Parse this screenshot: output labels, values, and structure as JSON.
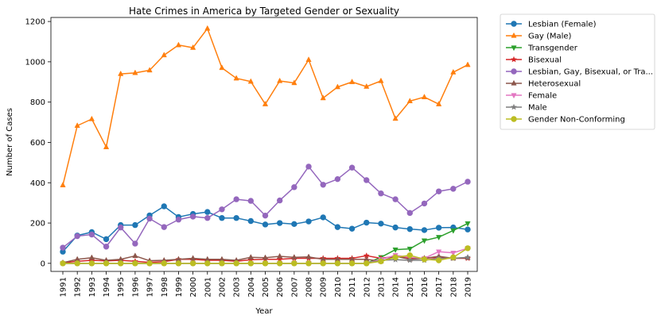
{
  "chart_data": {
    "type": "line",
    "title": "Hate Crimes in America by Targeted Gender or Sexuality",
    "xlabel": "Year",
    "ylabel": "Number of Cases",
    "ylim": [
      -40,
      1220
    ],
    "yticks": [
      0,
      200,
      400,
      600,
      800,
      1000,
      1200
    ],
    "grid": false,
    "legend_placement": "outside-top-right",
    "x": [
      "1991",
      "1992",
      "1993",
      "1994",
      "1995",
      "1996",
      "1997",
      "1998",
      "1999",
      "2000",
      "2001",
      "2002",
      "2003",
      "2004",
      "2005",
      "2006",
      "2007",
      "2008",
      "2009",
      "2010",
      "2011",
      "2012",
      "2013",
      "2014",
      "2015",
      "2016",
      "2017",
      "2018",
      "2019"
    ],
    "series": [
      {
        "name": "Lesbian (Female)",
        "color": "#1f77b4",
        "marker": "circle",
        "values": [
          58,
          138,
          155,
          120,
          190,
          190,
          238,
          283,
          230,
          245,
          255,
          225,
          225,
          210,
          193,
          200,
          195,
          208,
          228,
          180,
          172,
          202,
          197,
          178,
          170,
          165,
          177,
          178,
          168
        ]
      },
      {
        "name": "Gay (Male)",
        "color": "#ff7f0e",
        "marker": "triangle-up",
        "values": [
          388,
          683,
          716,
          577,
          940,
          945,
          958,
          1033,
          1083,
          1070,
          1165,
          970,
          918,
          902,
          790,
          905,
          895,
          1010,
          820,
          875,
          900,
          877,
          905,
          718,
          805,
          825,
          790,
          948,
          985
        ]
      },
      {
        "name": "Transgender",
        "color": "#2ca02c",
        "marker": "triangle-down",
        "values": [
          0,
          0,
          0,
          0,
          0,
          0,
          0,
          0,
          0,
          0,
          0,
          0,
          0,
          0,
          0,
          0,
          0,
          0,
          0,
          0,
          0,
          0,
          30,
          68,
          72,
          113,
          130,
          163,
          198
        ]
      },
      {
        "name": "Bisexual",
        "color": "#d62728",
        "marker": "star",
        "values": [
          3,
          10,
          15,
          12,
          15,
          10,
          5,
          8,
          20,
          20,
          15,
          15,
          10,
          18,
          20,
          20,
          25,
          25,
          25,
          25,
          25,
          38,
          25,
          35,
          25,
          25,
          30,
          25,
          25
        ]
      },
      {
        "name": "Lesbian, Gay, Bisexual, or Tra...",
        "color": "#9467bd",
        "marker": "circle",
        "values": [
          78,
          135,
          143,
          83,
          178,
          98,
          222,
          180,
          217,
          232,
          225,
          268,
          318,
          310,
          237,
          312,
          378,
          480,
          390,
          418,
          475,
          413,
          347,
          318,
          250,
          297,
          357,
          370,
          405
        ]
      },
      {
        "name": "Heterosexual",
        "color": "#8c564b",
        "marker": "triangle-up",
        "values": [
          3,
          20,
          28,
          15,
          20,
          37,
          13,
          15,
          20,
          25,
          20,
          20,
          15,
          30,
          28,
          35,
          30,
          32,
          20,
          20,
          20,
          20,
          10,
          35,
          20,
          25,
          35,
          25,
          28
        ]
      },
      {
        "name": "Female",
        "color": "#e377c2",
        "marker": "triangle-down",
        "values": [
          0,
          0,
          0,
          0,
          0,
          0,
          0,
          0,
          0,
          0,
          0,
          0,
          0,
          0,
          0,
          0,
          0,
          0,
          0,
          0,
          0,
          0,
          20,
          40,
          30,
          25,
          58,
          52,
          75
        ]
      },
      {
        "name": "Male",
        "color": "#7f7f7f",
        "marker": "star",
        "values": [
          0,
          0,
          0,
          0,
          0,
          0,
          0,
          0,
          0,
          0,
          0,
          0,
          0,
          0,
          0,
          0,
          0,
          0,
          0,
          0,
          0,
          0,
          15,
          18,
          15,
          15,
          25,
          25,
          30
        ]
      },
      {
        "name": "Gender Non-Conforming",
        "color": "#bcbd22",
        "marker": "circle",
        "values": [
          0,
          0,
          0,
          0,
          0,
          0,
          0,
          0,
          0,
          0,
          0,
          0,
          0,
          0,
          0,
          0,
          0,
          0,
          0,
          0,
          0,
          0,
          10,
          30,
          40,
          20,
          15,
          30,
          75
        ]
      }
    ]
  }
}
